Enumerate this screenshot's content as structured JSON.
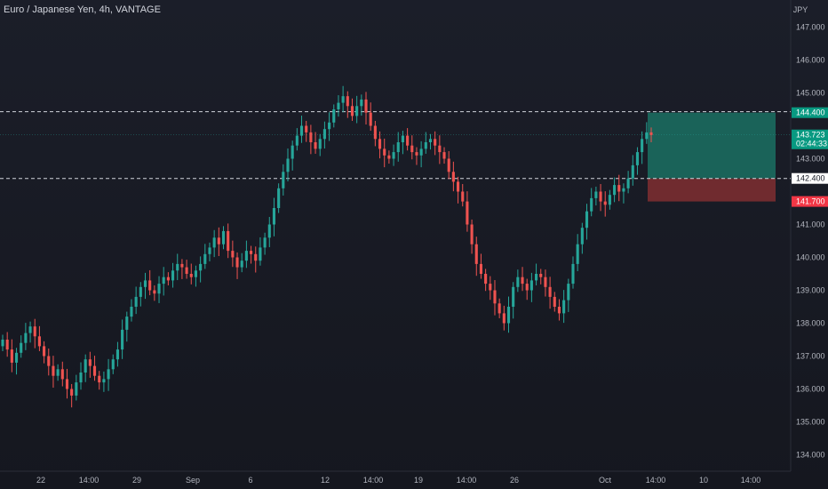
{
  "header": {
    "title": "Euro / Japanese Yen, 4h, VANTAGE"
  },
  "colors": {
    "up": "#26a69a",
    "down": "#ef5350",
    "background": "#181b24",
    "axis_text": "#b2b5be",
    "dashed_line": "#d1d4dc",
    "target_zone": "#1b6b5f",
    "stop_zone": "#7a2e31"
  },
  "chart_data": {
    "type": "candlestick",
    "title": "Euro / Japanese Yen, 4h, VANTAGE",
    "yaxis_unit": "JPY",
    "ylim": [
      133.5,
      147.5
    ],
    "y_ticks": [
      "147.000",
      "146.000",
      "145.000",
      "144.000",
      "143.000",
      "142.000",
      "141.000",
      "140.000",
      "139.000",
      "138.000",
      "137.000",
      "136.000",
      "135.000",
      "134.000"
    ],
    "x_ticks": [
      "22",
      "14:00",
      "29",
      "Sep",
      "6",
      "12",
      "14:00",
      "19",
      "14:00",
      "26",
      "Oct",
      "14:00",
      "10",
      "14:00"
    ],
    "levels": {
      "upper_dashed": 144.43,
      "lower_dashed": 142.4,
      "current": 143.723
    },
    "position_box": {
      "target": 144.4,
      "entry": 142.4,
      "stop": 141.7
    },
    "price_labels": {
      "upper_hidden": "144.430",
      "target": "144.400",
      "current": "143.723",
      "countdown": "02:44:33",
      "entry": "142.400",
      "stop": "141.700"
    },
    "closes": [
      137.5,
      137.2,
      136.8,
      137.1,
      137.4,
      137.7,
      137.9,
      137.6,
      137.3,
      137.0,
      136.7,
      136.4,
      136.6,
      136.3,
      136.0,
      135.8,
      136.2,
      136.5,
      136.9,
      136.7,
      136.4,
      136.2,
      136.3,
      136.6,
      136.9,
      137.2,
      137.8,
      138.2,
      138.5,
      138.8,
      139.1,
      139.3,
      139.0,
      138.9,
      139.2,
      139.4,
      139.3,
      139.6,
      139.8,
      139.7,
      139.5,
      139.4,
      139.6,
      139.8,
      140.1,
      140.3,
      140.6,
      140.4,
      140.8,
      140.2,
      140.0,
      139.7,
      139.9,
      140.2,
      140.1,
      139.9,
      140.3,
      140.6,
      141.0,
      141.5,
      142.1,
      142.6,
      143.0,
      143.4,
      143.7,
      144.0,
      143.8,
      143.5,
      143.3,
      143.6,
      143.9,
      144.1,
      144.5,
      144.7,
      144.9,
      144.6,
      144.3,
      144.6,
      144.8,
      144.4,
      144.0,
      143.6,
      143.3,
      143.1,
      143.0,
      143.2,
      143.5,
      143.7,
      143.4,
      143.2,
      143.1,
      143.3,
      143.5,
      143.6,
      143.4,
      143.2,
      143.0,
      142.6,
      142.3,
      142.0,
      141.7,
      141.0,
      140.4,
      139.8,
      139.5,
      139.2,
      139.0,
      138.6,
      138.3,
      138.0,
      138.5,
      139.1,
      139.4,
      139.2,
      139.0,
      139.3,
      139.5,
      139.4,
      139.1,
      138.8,
      138.5,
      138.3,
      138.7,
      139.2,
      139.8,
      140.4,
      140.9,
      141.4,
      141.8,
      142.0,
      141.7,
      141.6,
      141.9,
      142.2,
      142.0,
      142.1,
      142.4,
      142.8,
      143.2,
      143.6,
      143.8,
      143.72
    ]
  }
}
